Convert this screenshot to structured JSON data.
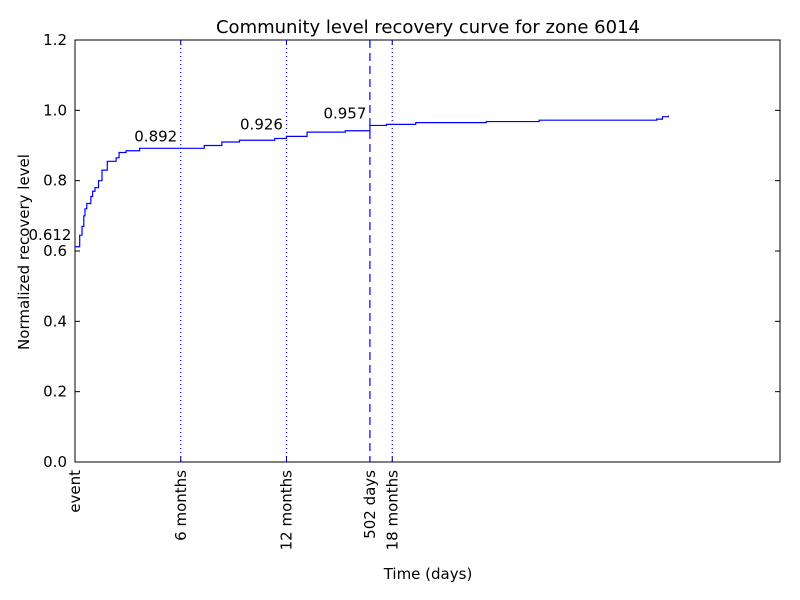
{
  "chart_data": {
    "type": "step",
    "title": "Community level recovery curve for zone 6014",
    "xlabel": "Time (days)",
    "ylabel": "Normalized recovery level",
    "xlim": [
      0,
      1200
    ],
    "ylim": [
      0,
      1.2
    ],
    "xticks": [
      {
        "value": 0,
        "label": "event"
      },
      {
        "value": 180,
        "label": "6 months"
      },
      {
        "value": 360,
        "label": "12 months"
      },
      {
        "value": 502,
        "label": "502 days"
      },
      {
        "value": 540,
        "label": "18 months"
      }
    ],
    "yticks": [
      {
        "value": 0,
        "label": "0.0"
      },
      0.2,
      0.4,
      0.6,
      0.8,
      {
        "value": 1,
        "label": "1.0"
      },
      1.2
    ],
    "series": [
      {
        "color": "#0000ff",
        "x": [
          0,
          8,
          12,
          15,
          17,
          20,
          27,
          30,
          34,
          40,
          46,
          55,
          70,
          75,
          87,
          110,
          220,
          250,
          280,
          340,
          360,
          395,
          460,
          502,
          530,
          580,
          700,
          790,
          990,
          1000,
          1010
        ],
        "values": [
          0.612,
          0.645,
          0.67,
          0.7,
          0.72,
          0.735,
          0.755,
          0.77,
          0.78,
          0.8,
          0.83,
          0.855,
          0.865,
          0.88,
          0.885,
          0.892,
          0.9,
          0.91,
          0.915,
          0.92,
          0.926,
          0.938,
          0.942,
          0.957,
          0.96,
          0.965,
          0.968,
          0.972,
          0.975,
          0.982,
          0.985
        ]
      }
    ],
    "vlines": [
      {
        "x": 180,
        "style": "dotted"
      },
      {
        "x": 360,
        "style": "dotted"
      },
      {
        "x": 502,
        "style": "dashed"
      },
      {
        "x": 540,
        "style": "dotted"
      }
    ],
    "annotations": [
      {
        "x": 0,
        "value": 0.612
      },
      {
        "x": 180,
        "value": 0.892
      },
      {
        "x": 360,
        "value": 0.926
      },
      {
        "x": 502,
        "value": 0.957
      }
    ]
  }
}
